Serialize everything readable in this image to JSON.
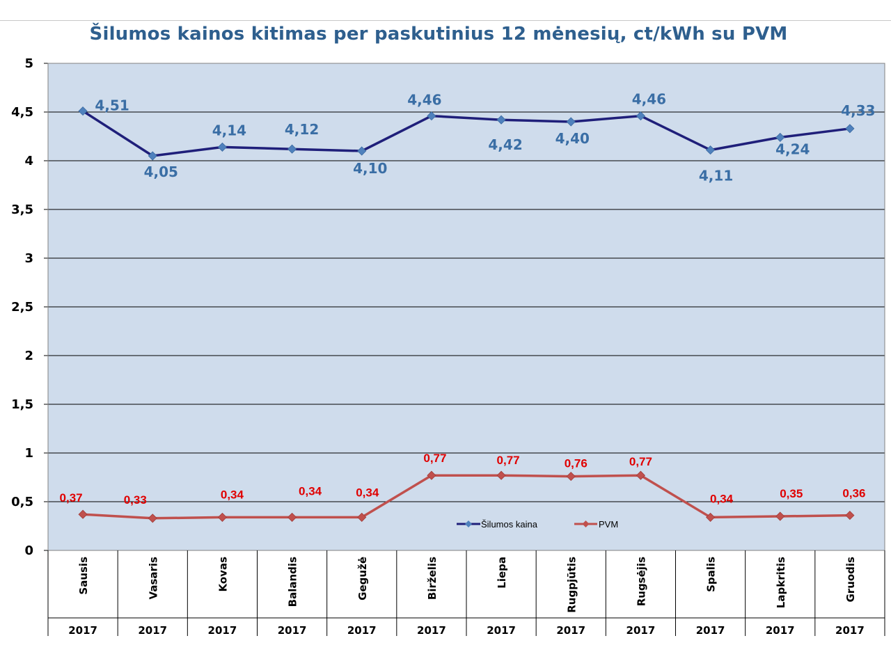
{
  "chart_data": {
    "type": "line",
    "title": "Šilumos kainos kitimas per paskutinius 12 mėnesių, ct/kWh su PVM",
    "categories": [
      "Sausis",
      "Vasaris",
      "Kovas",
      "Balandis",
      "Gegužė",
      "Birželis",
      "Liepa",
      "Rugpjūtis",
      "Rugsėjis",
      "Spalis",
      "Lapkritis",
      "Gruodis"
    ],
    "years": [
      "2017",
      "2017",
      "2017",
      "2017",
      "2017",
      "2017",
      "2017",
      "2017",
      "2017",
      "2017",
      "2017",
      "2017"
    ],
    "ylim": [
      0,
      5
    ],
    "yticks": [
      "0",
      "0,5",
      "1",
      "1,5",
      "2",
      "2,5",
      "3",
      "3,5",
      "4",
      "4,5",
      "5"
    ],
    "grid": true,
    "legend_position": "bottom-center",
    "series": [
      {
        "name": "Šilumos kaina",
        "values": [
          4.51,
          4.05,
          4.14,
          4.12,
          4.1,
          4.46,
          4.42,
          4.4,
          4.46,
          4.11,
          4.24,
          4.33
        ],
        "labels": [
          "4,51",
          "4,05",
          "4,14",
          "4,12",
          "4,10",
          "4,46",
          "4,42",
          "4,40",
          "4,46",
          "4,11",
          "4,24",
          "4,33"
        ],
        "line_color": "#1f1f7a",
        "marker_color": "#4f81bd",
        "label_color": "#3a6ea5"
      },
      {
        "name": "PVM",
        "values": [
          0.37,
          0.33,
          0.34,
          0.34,
          0.34,
          0.77,
          0.77,
          0.76,
          0.77,
          0.34,
          0.35,
          0.36
        ],
        "labels": [
          "0,37",
          "0,33",
          "0,34",
          "0,34",
          "0,34",
          "0,77",
          "0,77",
          "0,76",
          "0,77",
          "0,34",
          "0,35",
          "0,36"
        ],
        "line_color": "#c0504d",
        "marker_color": "#c0504d",
        "label_color": "#e00000"
      }
    ]
  },
  "colors": {
    "plot_background": "#cfdcec",
    "title": "#2e5f8e",
    "grid": "#000000"
  }
}
